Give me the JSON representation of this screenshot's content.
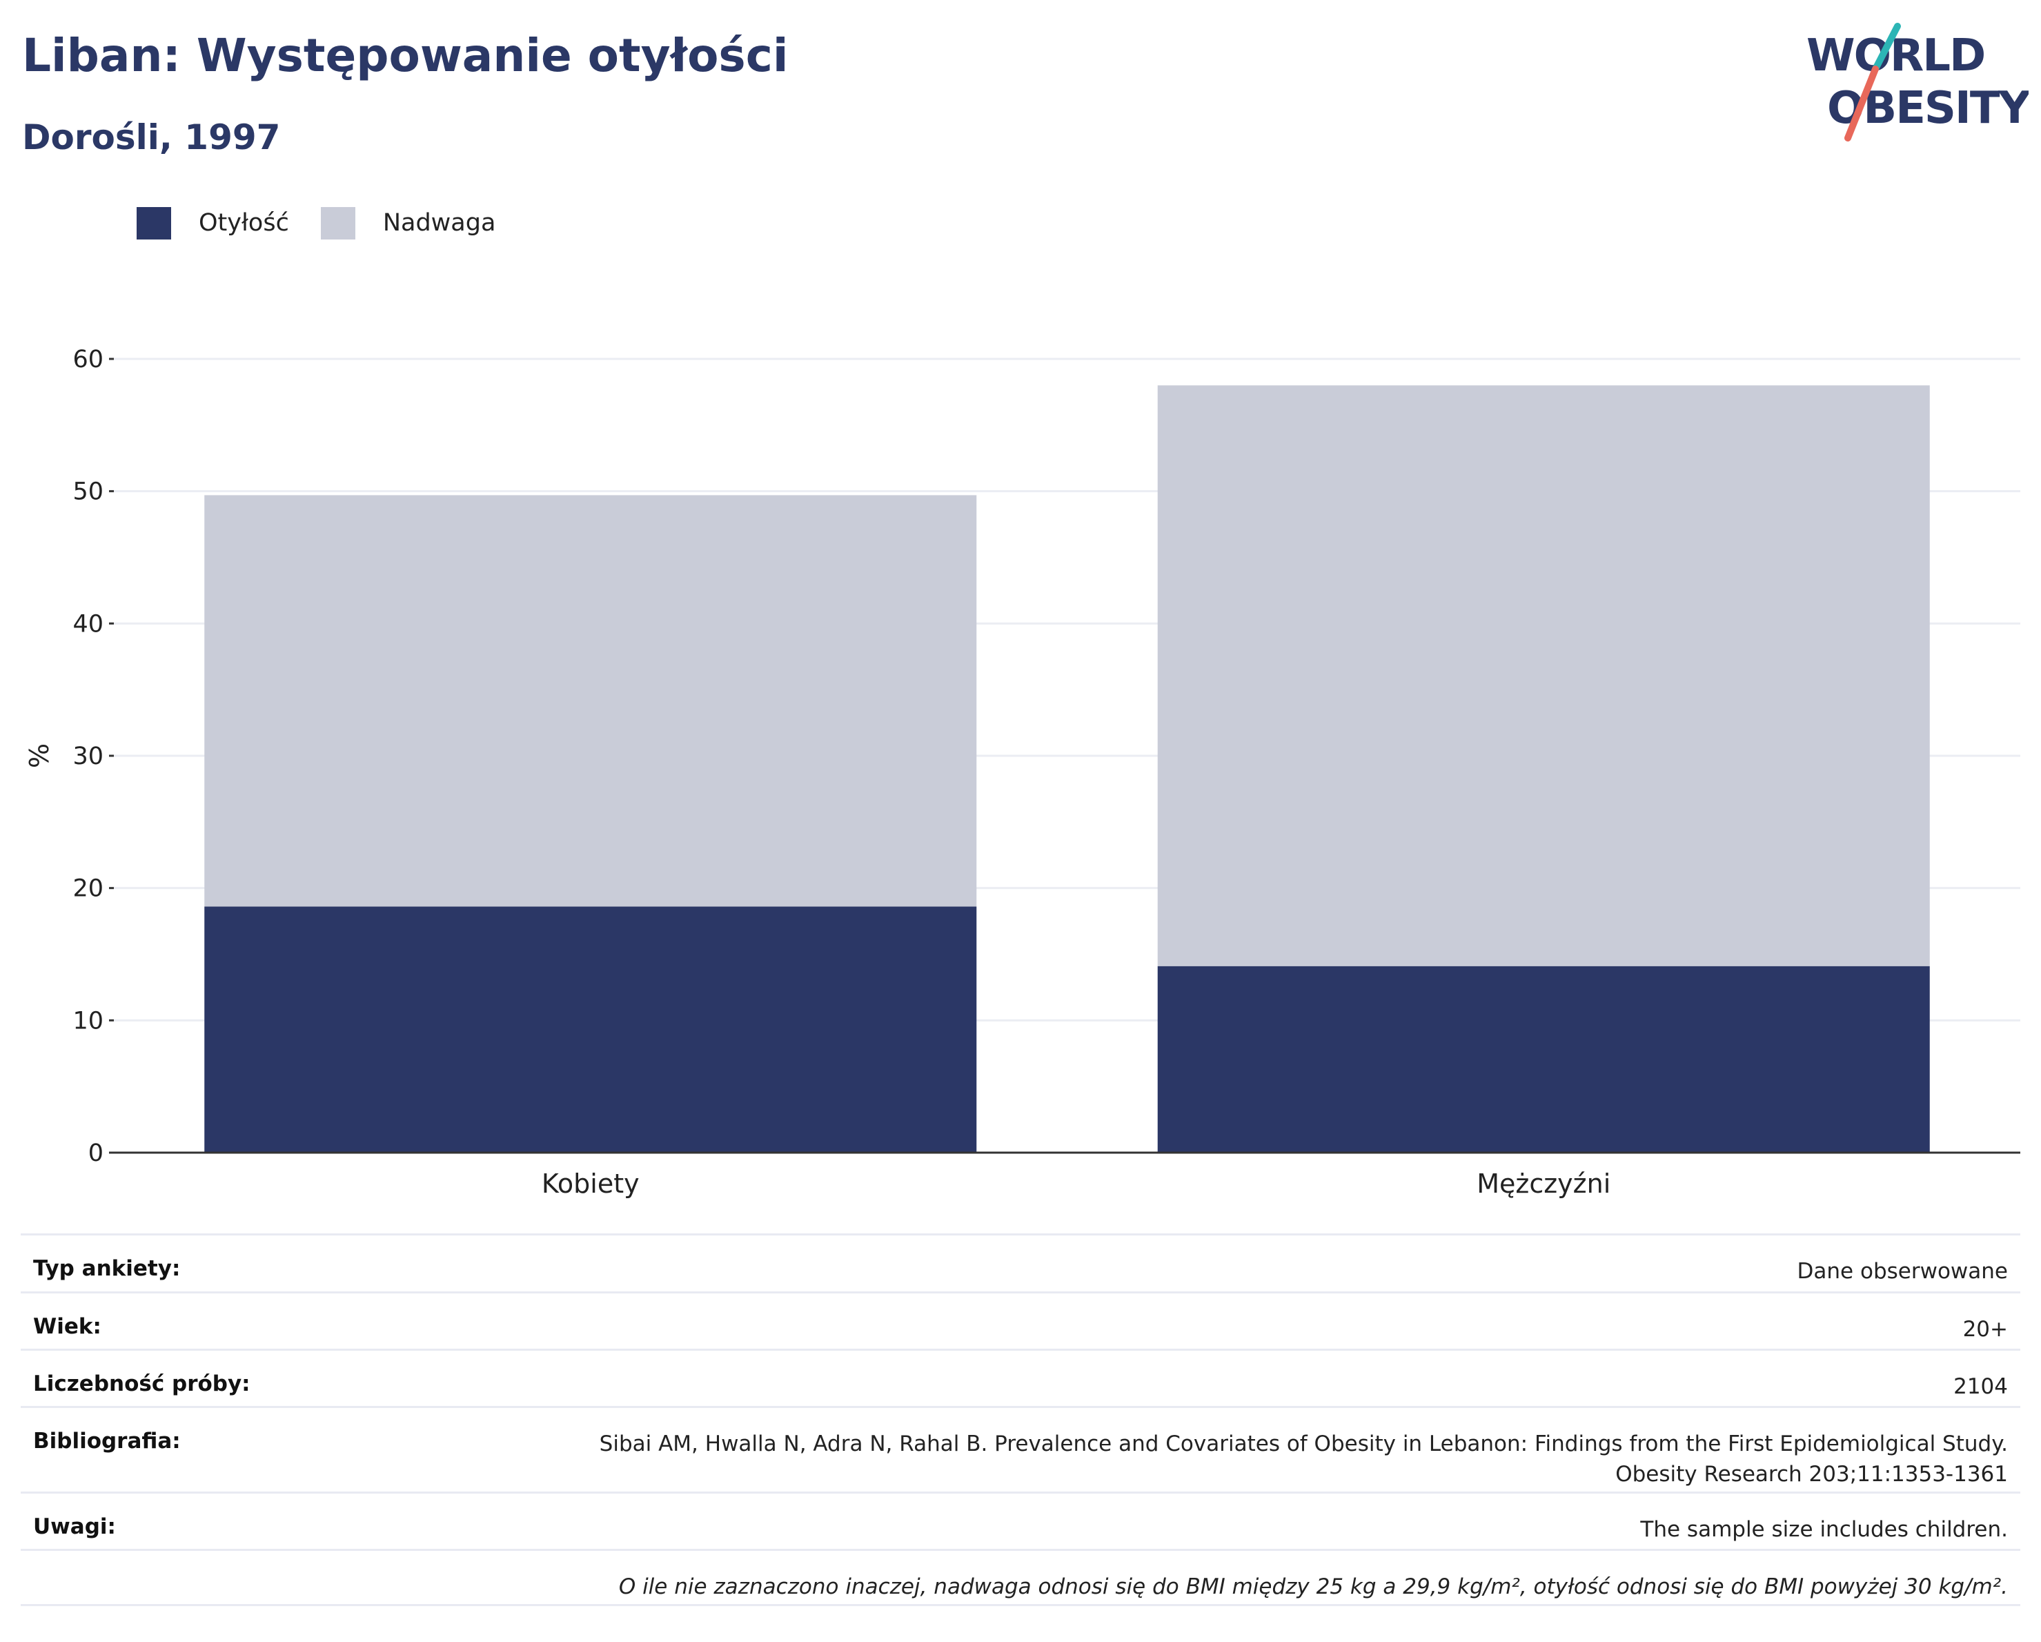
{
  "header": {
    "title": "Liban: Występowanie otyłości",
    "subtitle": "Dorośli, 1997"
  },
  "logo": {
    "line1": "WORLD",
    "line2": "OBESITY"
  },
  "colors": {
    "obesity": "#2b3766",
    "overweight": "#c9ccd8",
    "title": "#2b3866",
    "grid": "#ebedf3",
    "axis": "#333333"
  },
  "chart_data": {
    "type": "bar",
    "stacked": true,
    "categories": [
      "Kobiety",
      "Mężczyźni"
    ],
    "series": [
      {
        "name": "Otyłość",
        "values": [
          18.6,
          14.1
        ]
      },
      {
        "name": "Nadwaga",
        "values": [
          31.1,
          43.9
        ]
      }
    ],
    "ylabel": "%",
    "ylim": [
      0,
      60
    ],
    "yticks": [
      0,
      10,
      20,
      30,
      40,
      50,
      60
    ],
    "grid": true,
    "legend_position": "top-left"
  },
  "legend": [
    {
      "label": "Otyłość",
      "color": "#2b3766"
    },
    {
      "label": "Nadwaga",
      "color": "#c9ccd8"
    }
  ],
  "table": {
    "survey_type_label": "Typ ankiety:",
    "survey_type_value": "Dane obserwowane",
    "age_label": "Wiek:",
    "age_value": "20+",
    "sample_label": "Liczebność próby:",
    "sample_value": "2104",
    "bib_label": "Bibliografia:",
    "bib_value_line1": "Sibai AM, Hwalla N, Adra N, Rahal B. Prevalence and Covariates of Obesity in Lebanon: Findings from the First Epidemiolgical Study.",
    "bib_value_line2": "Obesity Research 203;11:1353-1361",
    "notes_label": "Uwagi:",
    "notes_value": "The sample size includes children.",
    "footnote": "O ile nie zaznaczono inaczej, nadwaga odnosi się do BMI między 25 kg a 29,9 kg/m², otyłość odnosi się do BMI powyżej 30 kg/m²."
  }
}
